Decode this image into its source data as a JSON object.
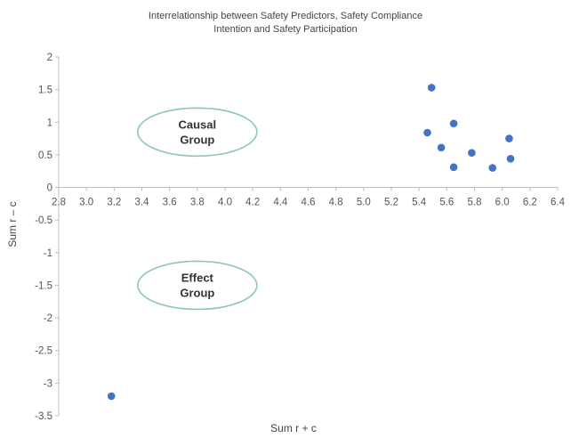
{
  "chart_data": {
    "type": "scatter",
    "title": "Interrelationship between Safety Predictors, Safety Compliance Intention and Safety Participation",
    "title_lines": [
      "Interrelationship between Safety Predictors, Safety Compliance",
      "Intention and Safety Participation"
    ],
    "xlabel": "Sum r + c",
    "ylabel": "Sum r – c",
    "xlim": [
      2.8,
      6.4
    ],
    "ylim": [
      -3.5,
      2
    ],
    "x_ticks": [
      "2.8",
      "3.0",
      "3.2",
      "3.4",
      "3.6",
      "3.8",
      "4.0",
      "4.2",
      "4.4",
      "4.6",
      "4.8",
      "5.0",
      "5.2",
      "5.4",
      "5.6",
      "5.8",
      "6.0",
      "6.2",
      "6.4"
    ],
    "y_ticks": [
      "2",
      "1.5",
      "1",
      "0.5",
      "0",
      "-0.5",
      "-1",
      "-1.5",
      "-2",
      "-2.5",
      "-3",
      "-3.5"
    ],
    "marker_color": "#4472c4",
    "grid": false,
    "points": [
      {
        "x": 5.49,
        "y": 1.53
      },
      {
        "x": 5.46,
        "y": 0.84
      },
      {
        "x": 5.65,
        "y": 0.98
      },
      {
        "x": 5.56,
        "y": 0.61
      },
      {
        "x": 5.78,
        "y": 0.53
      },
      {
        "x": 5.65,
        "y": 0.31
      },
      {
        "x": 5.93,
        "y": 0.3
      },
      {
        "x": 6.05,
        "y": 0.75
      },
      {
        "x": 6.06,
        "y": 0.44
      },
      {
        "x": 3.18,
        "y": -3.2
      }
    ],
    "annotations": [
      {
        "name": "causal-group",
        "lines": [
          "Causal",
          "Group"
        ],
        "x": 3.8,
        "y": 0.85
      },
      {
        "name": "effect-group",
        "lines": [
          "Effect",
          "Group"
        ],
        "x": 3.8,
        "y": -1.5
      }
    ]
  }
}
